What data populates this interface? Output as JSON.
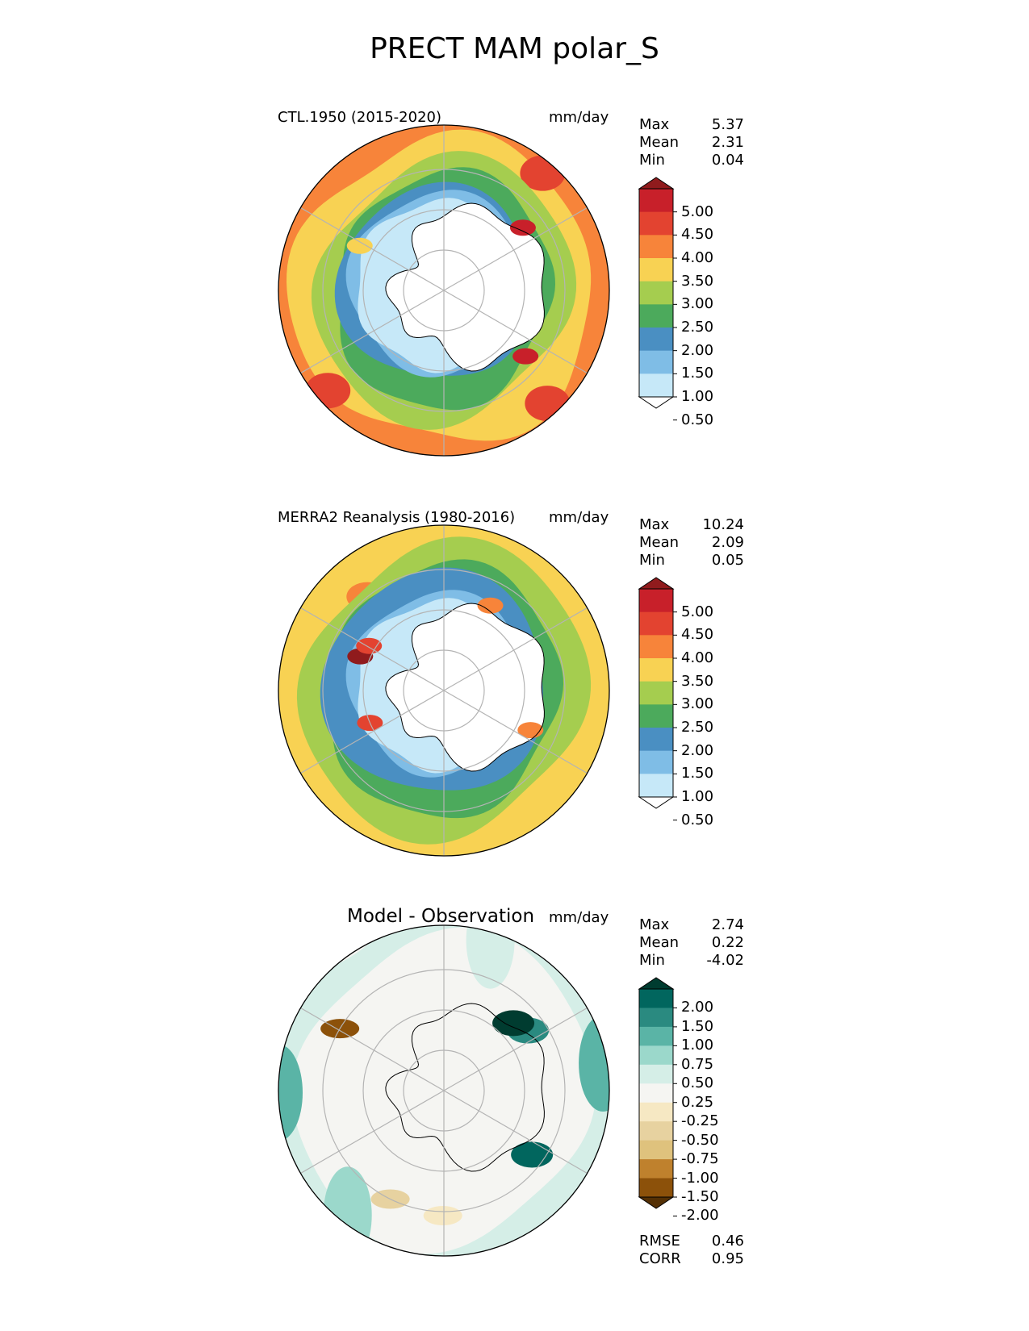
{
  "figure": {
    "title": "PRECT MAM polar_S"
  },
  "palettes": {
    "precip": [
      "#ffffff",
      "#c6e8f8",
      "#7fbde6",
      "#4a8fc2",
      "#4caa5c",
      "#a5cd4f",
      "#f8d253",
      "#f7843a",
      "#e34330",
      "#c8202a",
      "#901b1d"
    ],
    "diff": [
      "#543005",
      "#8c510a",
      "#bf812d",
      "#dfc27d",
      "#e7d2a0",
      "#f6e8c3",
      "#f5f5f2",
      "#d5eee7",
      "#9bd8cb",
      "#5ab4a6",
      "#2a8a80",
      "#01665e",
      "#003c30"
    ]
  },
  "panels": [
    {
      "left_title": "CTL.1950 (2015-2020)",
      "units": "mm/day",
      "stats": [
        {
          "label": "Max",
          "value": "5.37"
        },
        {
          "label": "Mean",
          "value": "2.31"
        },
        {
          "label": "Min",
          "value": "0.04"
        }
      ],
      "colorbar_ticks": [
        "5.00",
        "4.50",
        "4.00",
        "3.50",
        "3.00",
        "2.50",
        "2.00",
        "1.50",
        "1.00",
        "0.50"
      ]
    },
    {
      "left_title": "MERRA2 Reanalysis (1980-2016)",
      "units": "mm/day",
      "stats": [
        {
          "label": "Max",
          "value": "10.24"
        },
        {
          "label": "Mean",
          "value": "2.09"
        },
        {
          "label": "Min",
          "value": "0.05"
        }
      ],
      "colorbar_ticks": [
        "5.00",
        "4.50",
        "4.00",
        "3.50",
        "3.00",
        "2.50",
        "2.00",
        "1.50",
        "1.00",
        "0.50"
      ]
    },
    {
      "center_title": "Model - Observation",
      "units": "mm/day",
      "stats": [
        {
          "label": "Max",
          "value": "2.74"
        },
        {
          "label": "Mean",
          "value": "0.22"
        },
        {
          "label": "Min",
          "value": "-4.02"
        }
      ],
      "colorbar_ticks": [
        "2.00",
        "1.50",
        "1.00",
        "0.75",
        "0.50",
        "0.25",
        "-0.25",
        "-0.50",
        "-0.75",
        "-1.00",
        "-1.50",
        "-2.00"
      ],
      "metrics": [
        {
          "label": "RMSE",
          "value": "0.46"
        },
        {
          "label": "CORR",
          "value": "0.95"
        }
      ]
    }
  ],
  "chart_data": [
    {
      "type": "heatmap",
      "title": "CTL.1950 (2015-2020)",
      "projection": "south polar stereographic",
      "field": "PRECT",
      "season": "MAM",
      "units": "mm/day",
      "levels": [
        0.5,
        1.0,
        1.5,
        2.0,
        2.5,
        3.0,
        3.5,
        4.0,
        4.5,
        5.0
      ],
      "summary": {
        "max": 5.37,
        "mean": 2.31,
        "min": 0.04
      }
    },
    {
      "type": "heatmap",
      "title": "MERRA2 Reanalysis (1980-2016)",
      "projection": "south polar stereographic",
      "field": "PRECT",
      "season": "MAM",
      "units": "mm/day",
      "levels": [
        0.5,
        1.0,
        1.5,
        2.0,
        2.5,
        3.0,
        3.5,
        4.0,
        4.5,
        5.0
      ],
      "summary": {
        "max": 10.24,
        "mean": 2.09,
        "min": 0.05
      }
    },
    {
      "type": "heatmap",
      "title": "Model - Observation",
      "projection": "south polar stereographic",
      "field": "PRECT difference",
      "season": "MAM",
      "units": "mm/day",
      "levels": [
        -2.0,
        -1.5,
        -1.0,
        -0.75,
        -0.5,
        -0.25,
        0.25,
        0.5,
        0.75,
        1.0,
        1.5,
        2.0
      ],
      "summary": {
        "max": 2.74,
        "mean": 0.22,
        "min": -4.02,
        "rmse": 0.46,
        "corr": 0.95
      }
    }
  ]
}
